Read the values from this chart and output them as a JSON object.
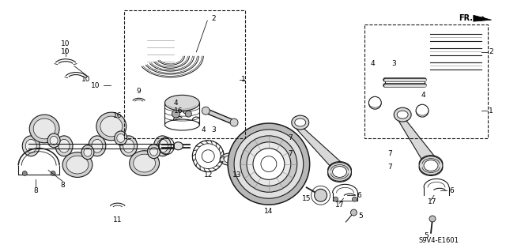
{
  "bg_color": "#ffffff",
  "fig_width": 6.4,
  "fig_height": 3.19,
  "dpi": 100,
  "line_color": "#1a1a1a",
  "text_color": "#000000",
  "font_size": 6.5,
  "gray": "#888888",
  "gray_fill": "#cccccc",
  "light_gray": "#e0e0e0"
}
